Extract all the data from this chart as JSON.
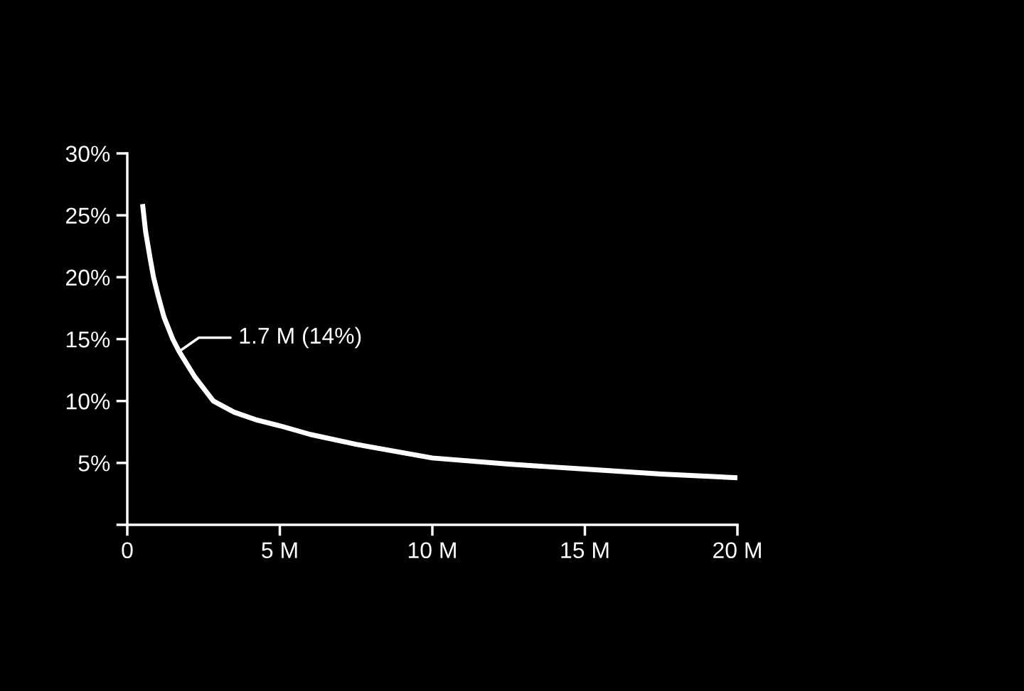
{
  "chart_data": {
    "type": "line",
    "x": [
      0.5,
      0.6,
      0.75,
      0.86,
      1.0,
      1.2,
      1.49,
      1.7,
      2.2,
      2.82,
      3.5,
      4.2,
      5,
      6,
      7.5,
      10,
      12.5,
      15,
      17.5,
      20
    ],
    "series": [
      {
        "color": "#ffffff",
        "values": [
          25.9,
          23.7,
          21.5,
          20,
          18.6,
          16.8,
          15,
          14,
          12,
          10,
          9.1,
          8.5,
          8.0,
          7.3,
          6.5,
          5.4,
          4.9,
          4.5,
          4.1,
          3.8
        ]
      }
    ],
    "xlim": [
      0,
      20
    ],
    "xticks": [
      0,
      {
        "value": 5,
        "label": "5 M"
      },
      {
        "value": 10,
        "label": "10 M"
      },
      {
        "value": 15,
        "label": "15 M"
      },
      {
        "value": 20,
        "label": "20 M"
      }
    ],
    "ylim": [
      0,
      30
    ],
    "yticks": [
      {
        "value": 0,
        "label": null
      },
      {
        "value": 5,
        "label": "5%"
      },
      {
        "value": 10,
        "label": "10%"
      },
      {
        "value": 15,
        "label": "15%"
      },
      {
        "value": 20,
        "label": "20%"
      },
      {
        "value": 25,
        "label": "25%"
      },
      {
        "value": 30,
        "label": "30%"
      }
    ],
    "annotations": [
      {
        "text": "1.7 M (14%)",
        "x": 1.7,
        "y": 14
      }
    ],
    "grid": false,
    "legend": false,
    "marker": "none",
    "line_style": "solid"
  }
}
